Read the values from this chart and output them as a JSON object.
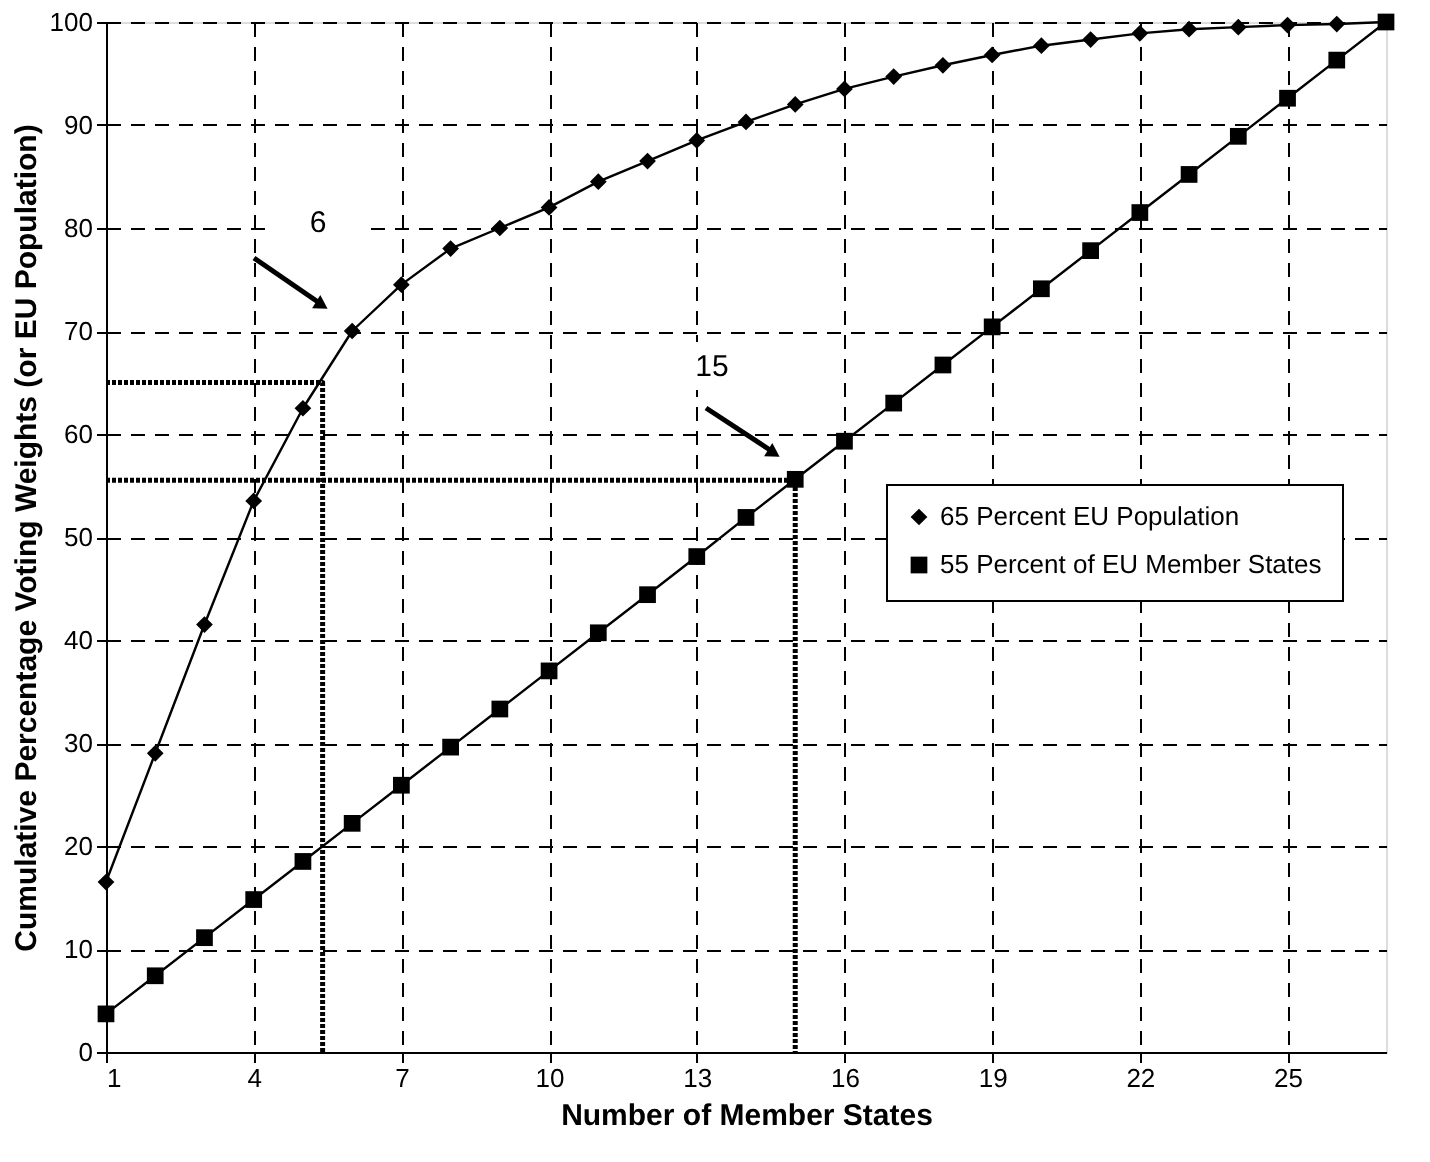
{
  "chart_data": {
    "type": "line",
    "xlabel": "Number of Member States",
    "ylabel": "Cumulative Percentage Voting Weights (or EU Population)",
    "x": [
      1,
      2,
      3,
      4,
      5,
      6,
      7,
      8,
      9,
      10,
      11,
      12,
      13,
      14,
      15,
      16,
      17,
      18,
      19,
      20,
      21,
      22,
      23,
      24,
      25,
      26,
      27
    ],
    "xlim": [
      1,
      27
    ],
    "xticks": [
      1,
      4,
      7,
      10,
      13,
      16,
      19,
      22,
      25
    ],
    "ylim": [
      0,
      100
    ],
    "yticks": [
      0,
      10,
      20,
      30,
      40,
      50,
      60,
      70,
      80,
      90,
      100
    ],
    "grid": true,
    "legend": "right",
    "line_style": "solid",
    "series": [
      {
        "name": "65 Percent EU Population",
        "color": "#000000",
        "marker": "diamond",
        "values": [
          16.5,
          29,
          41.5,
          53.5,
          62.5,
          70,
          74.5,
          78,
          80,
          82,
          84.5,
          86.5,
          88.5,
          90.3,
          92,
          93.5,
          94.7,
          95.8,
          96.8,
          97.7,
          98.3,
          98.9,
          99.3,
          99.5,
          99.7,
          99.8,
          100
        ]
      },
      {
        "name": "55 Percent of EU Member States",
        "color": "#000000",
        "marker": "square",
        "values": [
          3.7,
          7.4,
          11.1,
          14.8,
          18.5,
          22.2,
          25.9,
          29.6,
          33.3,
          37,
          40.7,
          44.4,
          48.1,
          51.9,
          55.6,
          59.3,
          63,
          66.7,
          70.4,
          74.1,
          77.8,
          81.5,
          85.2,
          88.9,
          92.6,
          96.3,
          100
        ]
      },
      {
        "type": "line",
        "x": [
          1,
          5.4,
          5.4
        ],
        "values": [
          65,
          65,
          0
        ],
        "color": "#000000",
        "line_style": "dotted",
        "marker": "none"
      },
      {
        "type": "line",
        "x": [
          1,
          15,
          15
        ],
        "values": [
          55.5,
          55.5,
          0
        ],
        "color": "#000000",
        "line_style": "dotted",
        "marker": "none"
      }
    ],
    "annotations": [
      "6",
      "15"
    ]
  }
}
